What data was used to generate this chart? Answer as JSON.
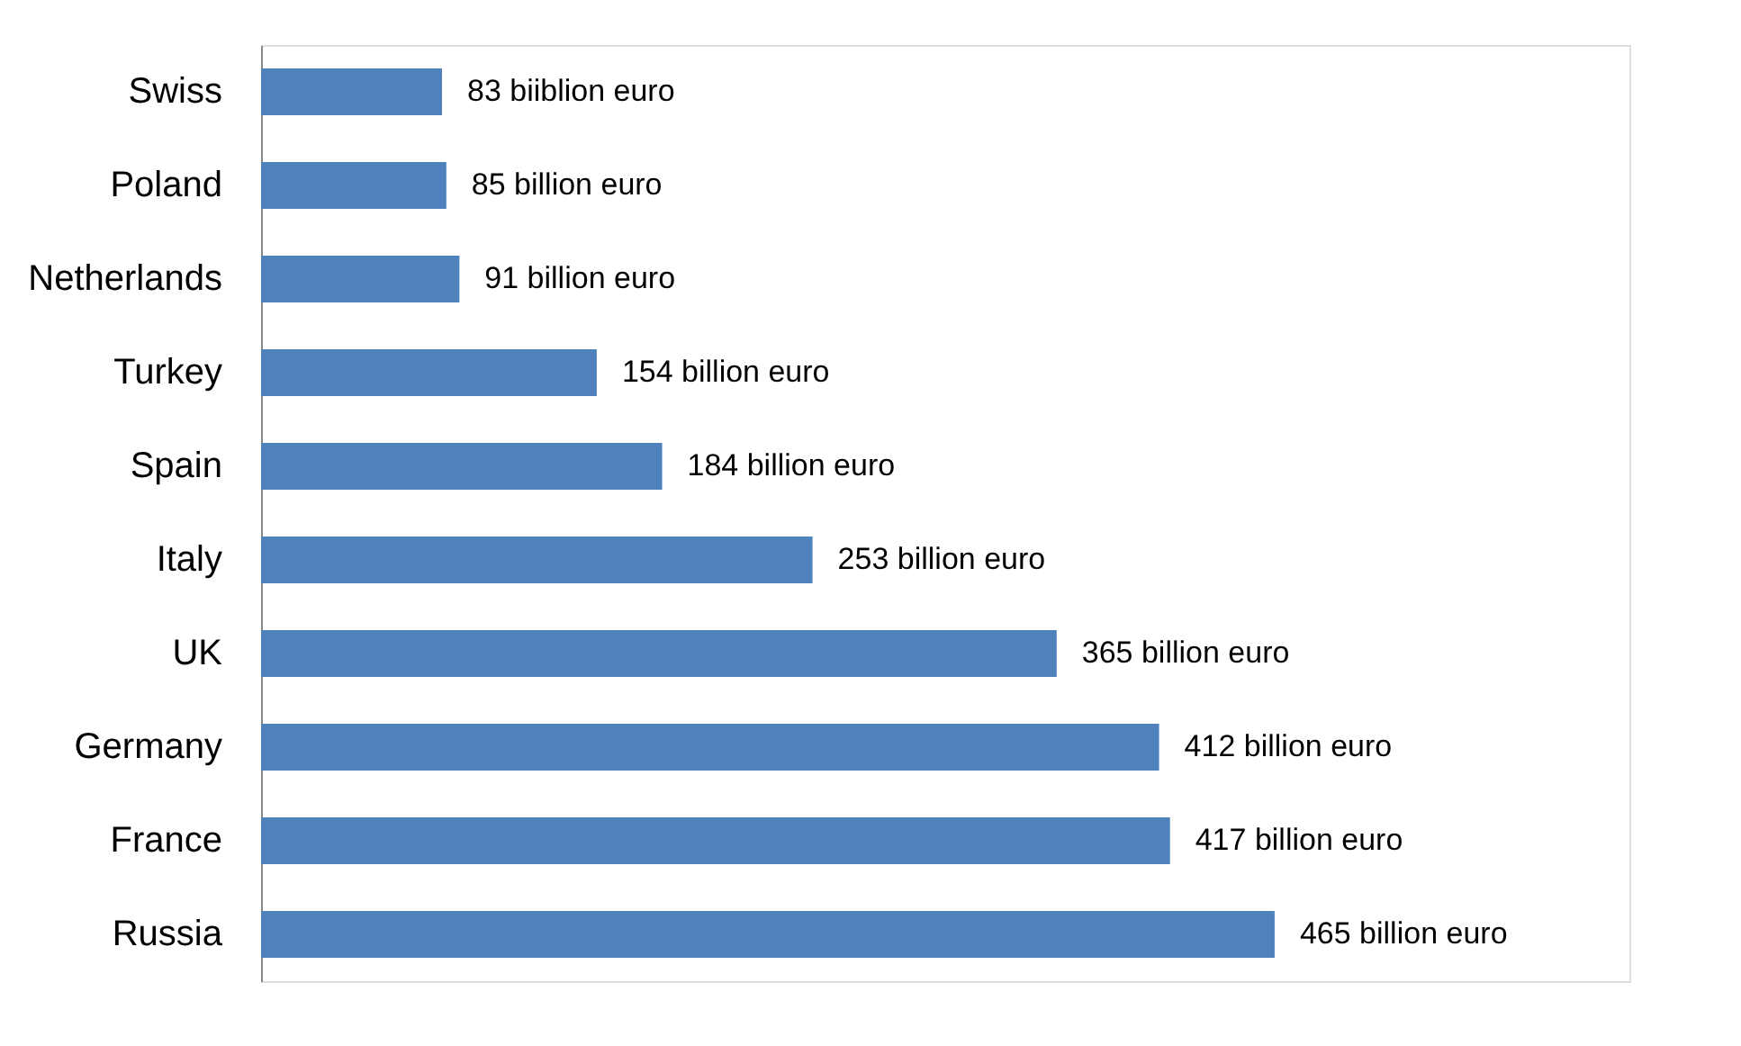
{
  "chart_data": {
    "type": "bar",
    "orientation": "horizontal",
    "categories": [
      "Swiss",
      "Poland",
      "Netherlands",
      "Turkey",
      "Spain",
      "Italy",
      "UK",
      "Germany",
      "France",
      "Russia"
    ],
    "values": [
      83,
      85,
      91,
      154,
      184,
      253,
      365,
      412,
      417,
      465
    ],
    "value_labels": [
      "83 biiblion euro",
      "85 billion euro",
      "91 billion euro",
      "154 billion euro",
      "184 billion euro",
      "253 billion euro",
      "365 billion euro",
      "412 billion euro",
      "417 billion euro",
      "465 billion euro"
    ],
    "color": "#4f81bd"
  }
}
